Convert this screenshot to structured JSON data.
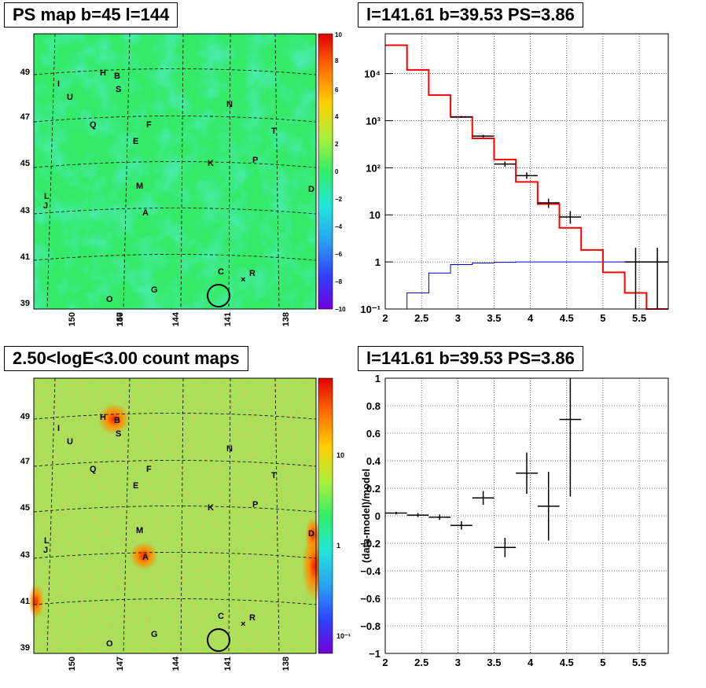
{
  "titles": {
    "top_left": "PS map b=45 l=144",
    "top_right": "l=141.61 b=39.53 PS=3.86",
    "bottom_left": "2.50<logE<3.00 count maps",
    "bottom_right": "l=141.61 b=39.53 PS=3.86"
  },
  "colors": {
    "map_background_top": "#33ee66",
    "map_background_bottom": "#a6e25a",
    "hist_model": "#ff0000",
    "hist_data": "#000000",
    "hist_blue": "#0000cc",
    "grid": "#000000"
  },
  "map_labels": {
    "sources": [
      "H",
      "B",
      "S",
      "I",
      "U",
      "N",
      "Q",
      "F",
      "T",
      "E",
      "K",
      "P",
      "M",
      "D",
      "L",
      "J",
      "A",
      "C",
      "R",
      "G",
      "O"
    ],
    "lat_ticks": [
      "49",
      "47",
      "45",
      "43",
      "41",
      "39"
    ],
    "lon_ticks": [
      "150",
      "147",
      "144",
      "141",
      "138"
    ]
  },
  "colorbar_ps": {
    "ticks": [
      "10",
      "8",
      "6",
      "4",
      "2",
      "0",
      "−2",
      "−4",
      "−6",
      "−8",
      "−10"
    ]
  },
  "colorbar_counts": {
    "ticks": [
      "10",
      "1",
      "10⁻¹"
    ]
  },
  "chart_data": [
    {
      "type": "line",
      "title": "l=141.61 b=39.53 PS=3.86",
      "xlabel": "",
      "ylabel": "",
      "yscale": "log",
      "xlim": [
        2,
        5.9
      ],
      "ylim": [
        0.1,
        70000
      ],
      "x_ticks": [
        "2",
        "2.5",
        "3",
        "3.5",
        "4",
        "4.5",
        "5",
        "5.5"
      ],
      "y_ticks": [
        "10⁻¹",
        "1",
        "10",
        "10²",
        "10³",
        "10⁴"
      ],
      "series": [
        {
          "kind": "model-histogram",
          "bin_edges": [
            2.0,
            2.3,
            2.6,
            2.9,
            3.2,
            3.5,
            3.8,
            4.1,
            4.4,
            4.7,
            5.0,
            5.3,
            5.6,
            5.9
          ],
          "values": [
            40000,
            12000,
            3500,
            1200,
            420,
            150,
            50,
            17,
            5.3,
            1.8,
            0.6,
            0.22,
            0.09
          ]
        },
        {
          "kind": "blue-histogram",
          "bin_edges": [
            2.0,
            2.3,
            2.6,
            2.9,
            3.2,
            3.5,
            3.8,
            4.1,
            4.4,
            4.7,
            5.0,
            5.3,
            5.6,
            5.9
          ],
          "values": [
            0.1,
            0.22,
            0.58,
            0.88,
            0.95,
            0.98,
            1.0,
            1.0,
            1.0,
            1.0,
            1.0,
            1.0,
            1.0
          ]
        },
        {
          "kind": "data-points",
          "points": [
            {
              "x": 3.05,
              "xerr": 0.15,
              "y": 1200,
              "ylo": 1150,
              "yhi": 1260
            },
            {
              "x": 3.35,
              "xerr": 0.15,
              "y": 470,
              "ylo": 440,
              "yhi": 500
            },
            {
              "x": 3.65,
              "xerr": 0.15,
              "y": 120,
              "ylo": 105,
              "yhi": 135
            },
            {
              "x": 3.95,
              "xerr": 0.15,
              "y": 68,
              "ylo": 58,
              "yhi": 80
            },
            {
              "x": 4.25,
              "xerr": 0.15,
              "y": 18,
              "ylo": 14,
              "yhi": 22
            },
            {
              "x": 4.55,
              "xerr": 0.15,
              "y": 9,
              "ylo": 6.5,
              "yhi": 12
            },
            {
              "x": 5.45,
              "xerr": 0.15,
              "y": 1,
              "ylo": 0.1,
              "yhi": 2.0
            },
            {
              "x": 5.75,
              "xerr": 0.15,
              "y": 1,
              "ylo": 0.1,
              "yhi": 2.0
            }
          ]
        }
      ]
    },
    {
      "type": "scatter",
      "title": "l=141.61 b=39.53 PS=3.86",
      "xlabel": "",
      "ylabel": "(data-model)/model",
      "xlim": [
        2,
        5.9
      ],
      "ylim": [
        -1,
        1
      ],
      "x_ticks": [
        "2",
        "2.5",
        "3",
        "3.5",
        "4",
        "4.5",
        "5",
        "5.5"
      ],
      "y_ticks": [
        "1",
        "0.8",
        "0.6",
        "0.4",
        "0.2",
        "0",
        "−0.2",
        "−0.4",
        "−0.6",
        "−0.8",
        "−1"
      ],
      "points": [
        {
          "x": 2.15,
          "xerr": 0.15,
          "y": 0.02,
          "yerr": 0.01
        },
        {
          "x": 2.45,
          "xerr": 0.15,
          "y": 0.005,
          "yerr": 0.015
        },
        {
          "x": 2.75,
          "xerr": 0.15,
          "y": -0.01,
          "yerr": 0.02
        },
        {
          "x": 3.05,
          "xerr": 0.15,
          "y": -0.07,
          "yerr": 0.03
        },
        {
          "x": 3.35,
          "xerr": 0.15,
          "y": 0.13,
          "yerr": 0.05
        },
        {
          "x": 3.65,
          "xerr": 0.15,
          "y": -0.23,
          "yerr": 0.07
        },
        {
          "x": 3.95,
          "xerr": 0.15,
          "y": 0.31,
          "yerr": 0.15
        },
        {
          "x": 4.25,
          "xerr": 0.15,
          "y": 0.07,
          "yerr": 0.25
        },
        {
          "x": 4.55,
          "xerr": 0.15,
          "y": 0.7,
          "yerr": 0.56
        }
      ]
    }
  ]
}
